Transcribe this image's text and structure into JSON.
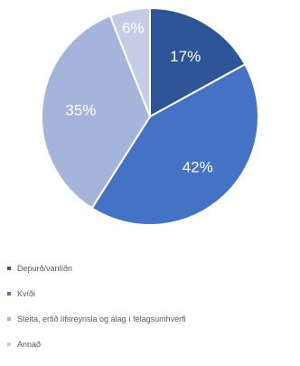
{
  "chart_data": {
    "type": "pie",
    "title": "",
    "slices": [
      {
        "label": "Depurð/vanlíðn",
        "value": 17,
        "display": "17%",
        "color": "#2e5597"
      },
      {
        "label": "Kvíði",
        "value": 42,
        "display": "42%",
        "color": "#4472c4"
      },
      {
        "label": "Steita, erfið lífsreynsla og álag í félagsumhverfi",
        "value": 35,
        "display": "35%",
        "color": "#a5b4db"
      },
      {
        "label": "Annað",
        "value": 6,
        "display": "6%",
        "color": "#c5cde6"
      }
    ],
    "start_angle_deg": 0,
    "direction": "clockwise",
    "legend_position": "bottom",
    "data_labels": "inside"
  }
}
